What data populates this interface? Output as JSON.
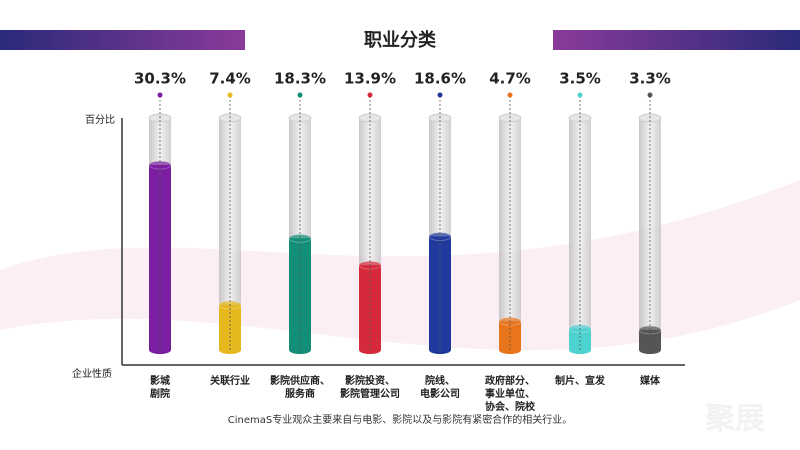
{
  "chart_data": {
    "type": "bar",
    "title": "职业分类",
    "y_label": "百分比",
    "x_label": "企业性质",
    "categories": [
      "影城\n剧院",
      "关联行业",
      "影院供应商、\n服务商",
      "影院投资、\n影院管理公司",
      "院线、\n电影公司",
      "政府部分、\n事业单位、\n协会、院校",
      "制片、宣发",
      "媒体"
    ],
    "values": [
      30.3,
      7.4,
      18.3,
      13.9,
      18.6,
      4.7,
      3.5,
      3.3
    ],
    "value_labels": [
      "30.3%",
      "7.4%",
      "18.3%",
      "13.9%",
      "18.6%",
      "4.7%",
      "3.5%",
      "3.3%"
    ],
    "colors": [
      "#7a1fa0",
      "#e6b820",
      "#138f78",
      "#d42a3c",
      "#1f3a9c",
      "#e8741c",
      "#4ed2cf",
      "#555555"
    ],
    "ylim": [
      0,
      38
    ],
    "note": "CinemaS专业观众主要来自与电影、影院以及与影院有紧密合作的相关行业。",
    "watermark": "聚展"
  }
}
